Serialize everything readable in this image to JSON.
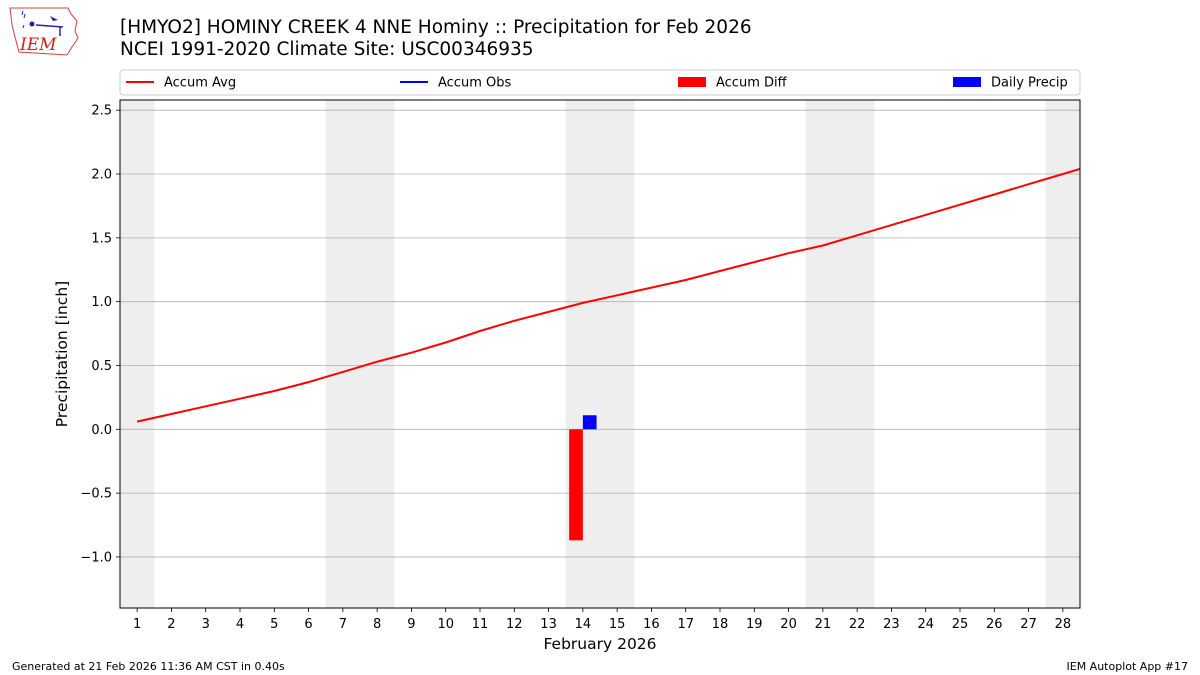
{
  "logo_text": "IEM",
  "title": "[HMYO2] HOMINY CREEK 4 NNE Hominy :: Precipitation for Feb 2026",
  "subtitle": "NCEI 1991-2020 Climate Site: USC00346935",
  "footer_left": "Generated at 21 Feb 2026 11:36 AM CST in 0.40s",
  "footer_right": "IEM Autoplot App #17",
  "colors": {
    "avg": "#ff0000",
    "obs": "#0000ff",
    "diff": "#ff0000",
    "daily": "#0000ff",
    "weekend": "#eeeeee",
    "grid": "#b0b0b0"
  },
  "chart_data": {
    "type": "line",
    "xlabel": "February 2026",
    "ylabel": "Precipitation [inch]",
    "xlim": [
      0.5,
      28.5
    ],
    "ylim": [
      -1.4,
      2.58
    ],
    "grid": "horizontal",
    "legend_position": "top",
    "legend": [
      "Accum Avg",
      "Accum Obs",
      "Accum Diff",
      "Daily Precip"
    ],
    "x_ticks": [
      1,
      2,
      3,
      4,
      5,
      6,
      7,
      8,
      9,
      10,
      11,
      12,
      13,
      14,
      15,
      16,
      17,
      18,
      19,
      20,
      21,
      22,
      23,
      24,
      25,
      26,
      27,
      28
    ],
    "y_ticks": [
      -1.0,
      -0.5,
      0.0,
      0.5,
      1.0,
      1.5,
      2.0,
      2.5
    ],
    "y_tick_labels": [
      "−1.0",
      "−0.5",
      "0.0",
      "0.5",
      "1.0",
      "1.5",
      "2.0",
      "2.5"
    ],
    "weekend_ranges": [
      [
        0.5,
        1.5
      ],
      [
        6.5,
        8.5
      ],
      [
        13.5,
        15.5
      ],
      [
        20.5,
        22.5
      ],
      [
        27.5,
        28.5
      ]
    ],
    "series": [
      {
        "name": "Accum Avg",
        "type": "line",
        "x": [
          1,
          2,
          3,
          4,
          5,
          6,
          7,
          8,
          9,
          10,
          11,
          12,
          13,
          14,
          15,
          16,
          17,
          18,
          19,
          20,
          21,
          22,
          23,
          24,
          25,
          26,
          27,
          28,
          28.5
        ],
        "values": [
          0.06,
          0.12,
          0.18,
          0.24,
          0.3,
          0.37,
          0.45,
          0.53,
          0.6,
          0.68,
          0.77,
          0.85,
          0.92,
          0.99,
          1.05,
          1.11,
          1.17,
          1.24,
          1.31,
          1.38,
          1.44,
          1.52,
          1.6,
          1.68,
          1.76,
          1.84,
          1.92,
          2.0,
          2.04
        ]
      },
      {
        "name": "Accum Obs",
        "type": "line",
        "x": [],
        "values": []
      },
      {
        "name": "Accum Diff",
        "type": "bar",
        "x": [
          13.8
        ],
        "values": [
          -0.87
        ]
      },
      {
        "name": "Daily Precip",
        "type": "bar",
        "x": [
          14.2
        ],
        "values": [
          0.11
        ]
      }
    ]
  }
}
